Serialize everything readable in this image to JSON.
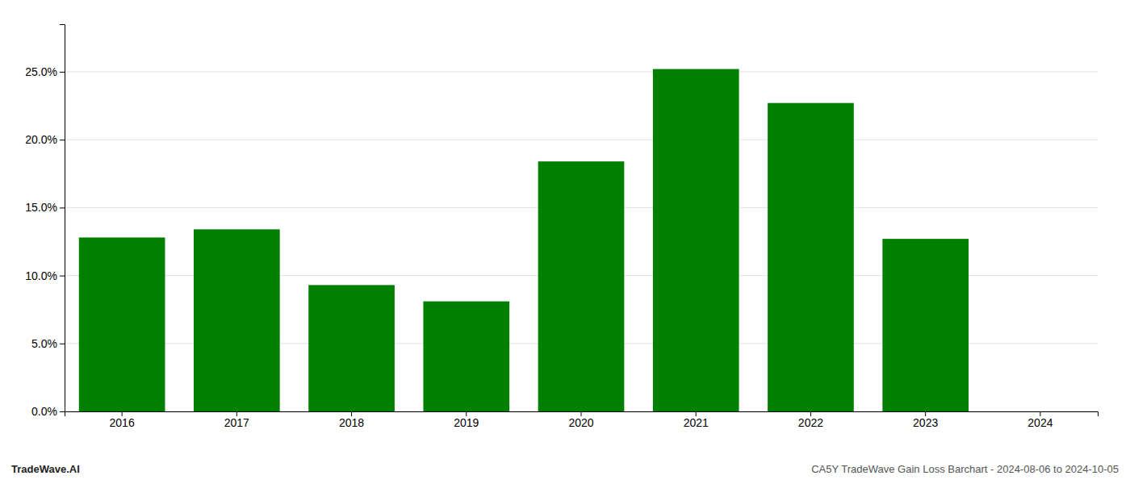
{
  "chart_data": {
    "type": "bar",
    "categories": [
      "2016",
      "2017",
      "2018",
      "2019",
      "2020",
      "2021",
      "2022",
      "2023",
      "2024"
    ],
    "values": [
      0.128,
      0.134,
      0.093,
      0.081,
      0.184,
      0.252,
      0.227,
      0.127,
      0.0
    ],
    "color": "#008000",
    "ylim": [
      0,
      0.285
    ],
    "yticks": [
      {
        "value": 0.0,
        "label": "0.0%"
      },
      {
        "value": 0.05,
        "label": "5.0%"
      },
      {
        "value": 0.1,
        "label": "10.0%"
      },
      {
        "value": 0.15,
        "label": "15.0%"
      },
      {
        "value": 0.2,
        "label": "20.0%"
      },
      {
        "value": 0.25,
        "label": "25.0%"
      }
    ],
    "grid": true,
    "annotations": [
      "TradeWave.AI",
      "CA5Y TradeWave Gain Loss Barchart - 2024-08-06 to 2024-10-05"
    ]
  }
}
